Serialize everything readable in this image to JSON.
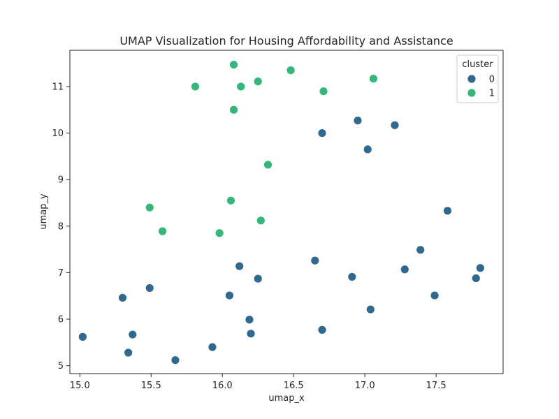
{
  "chart_data": {
    "type": "scatter",
    "title": "UMAP Visualization for Housing Affordability and Assistance",
    "xlabel": "umap_x",
    "ylabel": "umap_y",
    "xlim": [
      14.93,
      17.97
    ],
    "ylim": [
      4.83,
      11.78
    ],
    "xticks": [
      "15.0",
      "15.5",
      "16.0",
      "16.5",
      "17.0",
      "17.5"
    ],
    "yticks": [
      "5",
      "6",
      "7",
      "8",
      "9",
      "10",
      "11"
    ],
    "grid": false,
    "legend": {
      "title": "cluster",
      "placement": "top-right",
      "entries": [
        {
          "label": "0",
          "color": "#31688e"
        },
        {
          "label": "1",
          "color": "#35b779"
        }
      ]
    },
    "series": [
      {
        "name": "0",
        "color": "#31688e",
        "points": [
          [
            15.02,
            5.62
          ],
          [
            15.3,
            6.46
          ],
          [
            15.34,
            5.28
          ],
          [
            15.37,
            5.67
          ],
          [
            15.49,
            6.67
          ],
          [
            15.67,
            5.12
          ],
          [
            15.93,
            5.4
          ],
          [
            16.05,
            6.51
          ],
          [
            16.12,
            7.14
          ],
          [
            16.19,
            5.99
          ],
          [
            16.2,
            5.69
          ],
          [
            16.25,
            6.87
          ],
          [
            16.65,
            7.26
          ],
          [
            16.7,
            5.77
          ],
          [
            16.7,
            10.0
          ],
          [
            16.91,
            6.91
          ],
          [
            16.95,
            10.27
          ],
          [
            17.02,
            9.65
          ],
          [
            17.04,
            6.21
          ],
          [
            17.21,
            10.17
          ],
          [
            17.28,
            7.07
          ],
          [
            17.39,
            7.49
          ],
          [
            17.49,
            6.51
          ],
          [
            17.58,
            8.33
          ],
          [
            17.78,
            6.88
          ],
          [
            17.81,
            7.1
          ]
        ]
      },
      {
        "name": "1",
        "color": "#35b779",
        "points": [
          [
            15.49,
            8.4
          ],
          [
            15.58,
            7.89
          ],
          [
            15.81,
            11.0
          ],
          [
            15.98,
            7.85
          ],
          [
            16.06,
            8.55
          ],
          [
            16.08,
            10.5
          ],
          [
            16.08,
            11.47
          ],
          [
            16.13,
            11.0
          ],
          [
            16.25,
            11.11
          ],
          [
            16.27,
            8.12
          ],
          [
            16.32,
            9.32
          ],
          [
            16.48,
            11.35
          ],
          [
            16.71,
            10.9
          ],
          [
            17.06,
            11.17
          ]
        ]
      }
    ]
  }
}
